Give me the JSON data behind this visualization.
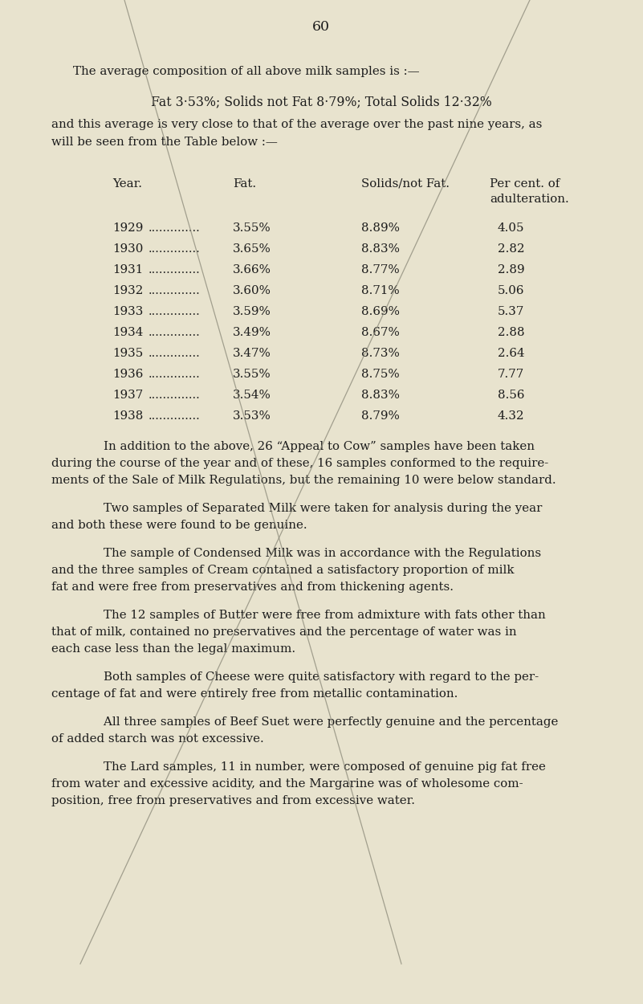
{
  "background_color": "#e8e3ce",
  "page_number": "60",
  "intro_line": "The average composition of all above milk samples is :—",
  "summary_line": "Fat 3·53%; Solids not Fat 8·79%; Total Solids 12·32%",
  "follow_line1": "and this average is very close to that of the average over the past nine years, as",
  "follow_line2": "will be seen from the Table below :—",
  "table_data": [
    [
      "1929",
      "3.55%",
      "8.89%",
      "4.05"
    ],
    [
      "1930",
      "3.65%",
      "8.83%",
      "2.82"
    ],
    [
      "1931",
      "3.66%",
      "8.77%",
      "2.89"
    ],
    [
      "1932",
      "3.60%",
      "8.71%",
      "5.06"
    ],
    [
      "1933",
      "3.59%",
      "8.69%",
      "5.37"
    ],
    [
      "1934",
      "3.49%",
      "8.67%",
      "2.88"
    ],
    [
      "1935",
      "3.47%",
      "8.73%",
      "2.64"
    ],
    [
      "1936",
      "3.55%",
      "8.75%",
      "7.77"
    ],
    [
      "1937",
      "3.54%",
      "8.83%",
      "8.56"
    ],
    [
      "1938",
      "3.53%",
      "8.79%",
      "4.32"
    ]
  ],
  "paras": [
    [
      "    In addition to the above, 26 “Appeal to Cow” samples have been taken",
      "during the course of the year and of these, 16 samples conformed to the require-",
      "ments of the Sale of Milk Regulations, but the remaining 10 were below standard."
    ],
    [
      "    Two samples of Separated Milk were taken for analysis during the year",
      "and both these were found to be genuine."
    ],
    [
      "    The sample of Condensed Milk was in accordance with the Regulations",
      "and the three samples of Cream contained a satisfactory proportion of milk",
      "fat and were free from preservatives and from thickening agents."
    ],
    [
      "    The 12 samples of Butter were free from admixture with fats other than",
      "that of milk, contained no preservatives and the percentage of water was in",
      "each case less than the legal maximum."
    ],
    [
      "    Both samples of Cheese were quite satisfactory with regard to the per-",
      "centage of fat and were entirely free from metallic contamination."
    ],
    [
      "    All three samples of Beef Suet were perfectly genuine and the percentage",
      "of added starch was not excessive."
    ],
    [
      "    The Lard samples, 11 in number, were composed of genuine pig fat free",
      "from water and excessive acidity, and the Margarine was of wholesome com-",
      "position, free from preservatives and from excessive water."
    ]
  ],
  "text_color": "#1c1c1c",
  "font_size_body": 10.8,
  "font_size_table": 10.8,
  "font_size_page": 12.5,
  "line_color": "#8a8878",
  "line_width": 0.9
}
